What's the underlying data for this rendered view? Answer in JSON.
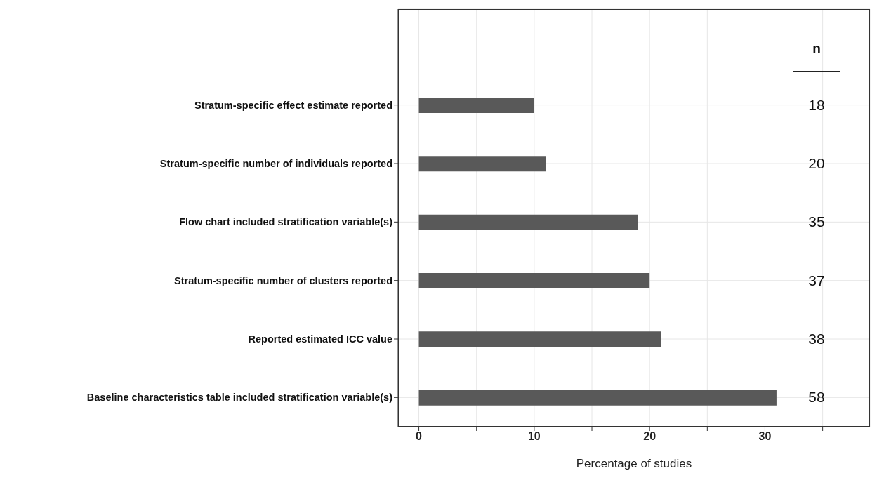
{
  "chart_data": {
    "type": "bar",
    "orientation": "horizontal",
    "xlabel": "Percentage of studies",
    "categories": [
      "Stratum-specific effect estimate reported",
      "Stratum-specific number of individuals reported",
      "Flow chart included stratification variable(s)",
      "Stratum-specific number of clusters reported",
      "Reported estimated ICC value",
      "Baseline characteristics table included stratification variable(s)"
    ],
    "values": [
      10,
      11,
      19,
      20,
      21,
      31
    ],
    "color": "#595959",
    "xlim": [
      -1.8,
      39.1
    ],
    "xticks": [
      0,
      {
        "value": 5,
        "label": null
      },
      10,
      {
        "value": 15,
        "label": null
      },
      20,
      {
        "value": 25,
        "label": null
      },
      30,
      {
        "value": 35,
        "label": null
      }
    ],
    "grid": true,
    "annotations": [
      "n",
      "18",
      "20",
      "35",
      "37",
      "38",
      "58"
    ]
  }
}
